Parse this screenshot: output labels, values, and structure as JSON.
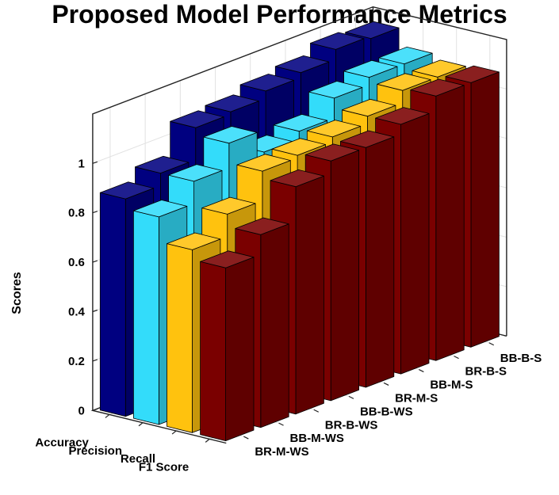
{
  "chart_data": {
    "type": "bar",
    "subtype": "3d-grouped",
    "title": "Proposed Model Performance Metrics",
    "zlabel": "Scores",
    "zlim": [
      0,
      1
    ],
    "z_ticks": [
      "0",
      "0.2",
      "0.4",
      "0.6",
      "0.8",
      "1"
    ],
    "grid": true,
    "categories": [
      "BR-M-WS",
      "BB-M-WS",
      "BR-B-WS",
      "BB-B-WS",
      "BR-M-S",
      "BB-M-S",
      "BR-B-S",
      "BB-B-S"
    ],
    "series": [
      {
        "name": "Accuracy",
        "color": "#000080",
        "values": [
          0.88,
          0.93,
          1.06,
          1.07,
          1.1,
          1.12,
          1.16,
          1.15
        ]
      },
      {
        "name": "Precision",
        "color": "#33dcfa",
        "values": [
          0.84,
          0.93,
          1.03,
          0.94,
          0.97,
          1.05,
          1.08,
          1.08
        ]
      },
      {
        "name": "Recall",
        "color": "#ffc20e",
        "values": [
          0.74,
          0.83,
          0.95,
          0.96,
          0.98,
          1.01,
          1.06,
          1.06
        ]
      },
      {
        "name": "F1 Score",
        "color": "#7a0000",
        "values": [
          0.7,
          0.78,
          0.92,
          0.97,
          0.97,
          1.01,
          1.07,
          1.07
        ]
      }
    ]
  }
}
